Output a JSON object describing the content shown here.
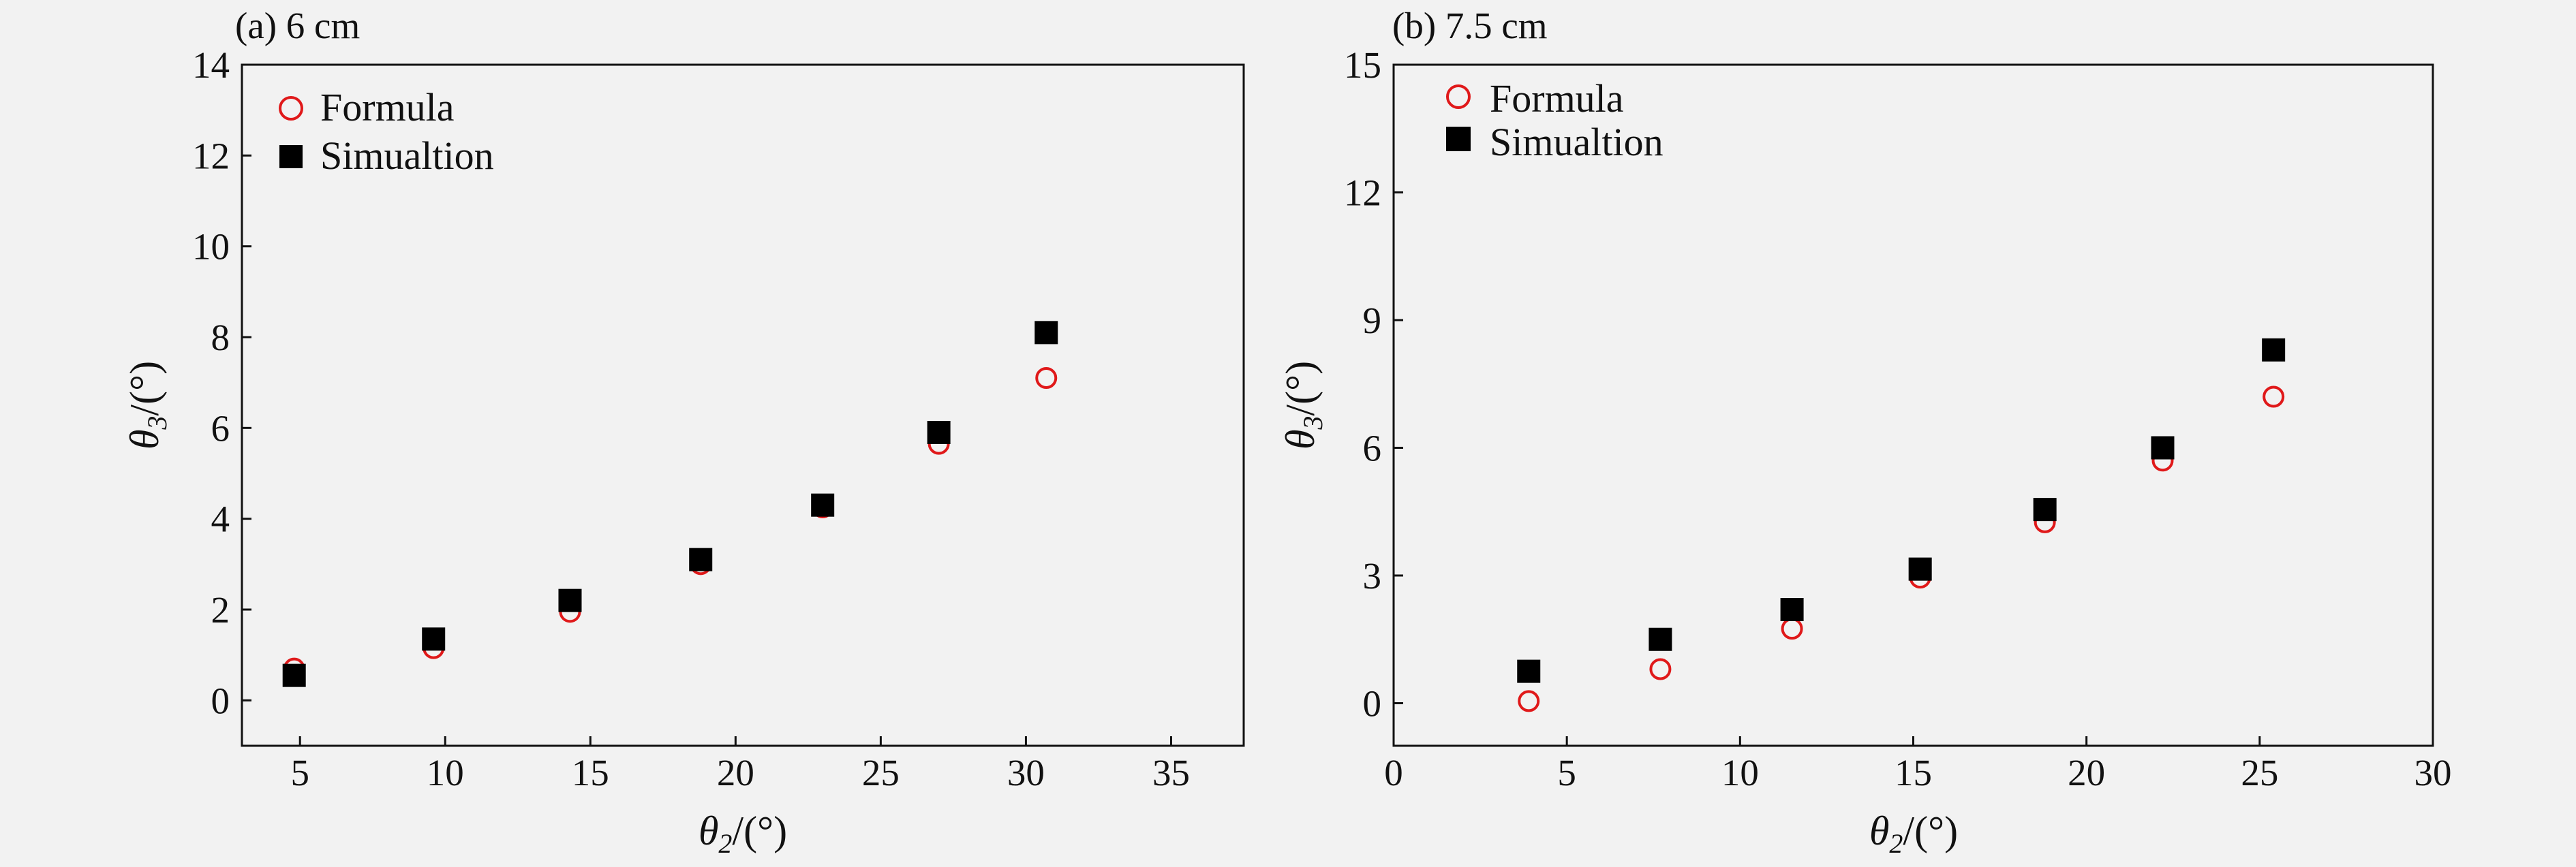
{
  "chart_data": [
    {
      "type": "scatter",
      "title": "(a) 6 cm",
      "xlabel": "θ2/(°)",
      "ylabel": "θ3/(°)",
      "xlim": [
        3,
        37.5
      ],
      "ylim": [
        -1,
        14
      ],
      "xticks": [
        5,
        10,
        15,
        20,
        25,
        30,
        35
      ],
      "yticks": [
        0,
        2,
        4,
        6,
        8,
        10,
        12,
        14
      ],
      "grid": false,
      "legend_position": "top-left",
      "series": [
        {
          "name": "Formula",
          "marker": "circle-open",
          "color": "#e0191a",
          "points": [
            [
              4.8,
              0.7
            ],
            [
              9.6,
              1.15
            ],
            [
              14.3,
              1.95
            ],
            [
              18.8,
              3.0
            ],
            [
              23.0,
              4.25
            ],
            [
              27.0,
              5.65
            ],
            [
              30.7,
              7.1
            ]
          ]
        },
        {
          "name": "Simualtion",
          "marker": "square-filled",
          "color": "#000000",
          "points": [
            [
              4.8,
              0.55
            ],
            [
              9.6,
              1.35
            ],
            [
              14.3,
              2.2
            ],
            [
              18.8,
              3.1
            ],
            [
              23.0,
              4.3
            ],
            [
              27.0,
              5.9
            ],
            [
              30.7,
              8.1
            ]
          ]
        }
      ]
    },
    {
      "type": "scatter",
      "title": "(b) 7.5 cm",
      "xlabel": "θ2/(°)",
      "ylabel": "θ3/(°)",
      "xlim": [
        0,
        30
      ],
      "ylim": [
        -1,
        15
      ],
      "xticks": [
        0,
        5,
        10,
        15,
        20,
        25,
        30
      ],
      "yticks": [
        0,
        3,
        6,
        9,
        12,
        15
      ],
      "grid": false,
      "legend_position": "top-left",
      "series": [
        {
          "name": "Formula",
          "marker": "circle-open",
          "color": "#e0191a",
          "points": [
            [
              3.9,
              0.05
            ],
            [
              7.7,
              0.8
            ],
            [
              11.5,
              1.75
            ],
            [
              15.2,
              2.95
            ],
            [
              18.8,
              4.25
            ],
            [
              22.2,
              5.7
            ],
            [
              25.4,
              7.2
            ]
          ]
        },
        {
          "name": "Simualtion",
          "marker": "square-filled",
          "color": "#000000",
          "points": [
            [
              3.9,
              0.75
            ],
            [
              7.7,
              1.5
            ],
            [
              11.5,
              2.2
            ],
            [
              15.2,
              3.15
            ],
            [
              18.8,
              4.55
            ],
            [
              22.2,
              6.0
            ],
            [
              25.4,
              8.3
            ]
          ]
        }
      ]
    }
  ]
}
